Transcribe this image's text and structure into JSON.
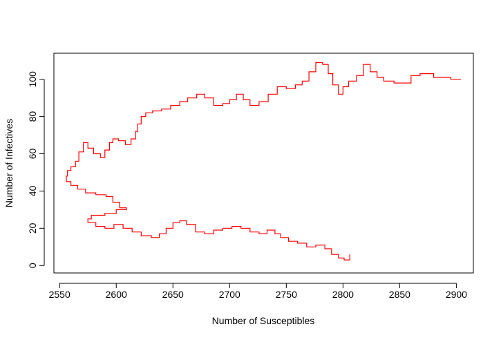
{
  "chart_data": {
    "type": "line",
    "title": "",
    "xlabel": "Number of Susceptibles",
    "ylabel": "Number of Infectives",
    "xlim": [
      2545,
      2915
    ],
    "ylim": [
      -4,
      114
    ],
    "xticks": [
      2550,
      2600,
      2650,
      2700,
      2750,
      2800,
      2850,
      2900
    ],
    "yticks": [
      0,
      20,
      40,
      60,
      80,
      100
    ],
    "grid": false,
    "line_style": "step",
    "series": [
      {
        "color": "#ff0000",
        "points": [
          [
            2904,
            100
          ],
          [
            2895,
            101
          ],
          [
            2880,
            103
          ],
          [
            2868,
            102
          ],
          [
            2860,
            98
          ],
          [
            2845,
            99
          ],
          [
            2836,
            101
          ],
          [
            2830,
            104
          ],
          [
            2824,
            108
          ],
          [
            2818,
            102
          ],
          [
            2812,
            99
          ],
          [
            2805,
            96
          ],
          [
            2800,
            92
          ],
          [
            2796,
            97
          ],
          [
            2791,
            103
          ],
          [
            2787,
            108
          ],
          [
            2782,
            109
          ],
          [
            2776,
            104
          ],
          [
            2770,
            99
          ],
          [
            2764,
            97
          ],
          [
            2758,
            95
          ],
          [
            2750,
            96
          ],
          [
            2742,
            92
          ],
          [
            2734,
            88
          ],
          [
            2726,
            86
          ],
          [
            2718,
            89
          ],
          [
            2712,
            92
          ],
          [
            2706,
            89
          ],
          [
            2700,
            87
          ],
          [
            2694,
            86
          ],
          [
            2686,
            90
          ],
          [
            2678,
            92
          ],
          [
            2671,
            90
          ],
          [
            2663,
            88
          ],
          [
            2656,
            86
          ],
          [
            2648,
            84
          ],
          [
            2640,
            83
          ],
          [
            2632,
            82
          ],
          [
            2626,
            80
          ],
          [
            2622,
            76
          ],
          [
            2619,
            72
          ],
          [
            2617,
            68
          ],
          [
            2613,
            65
          ],
          [
            2608,
            67
          ],
          [
            2602,
            68
          ],
          [
            2597,
            66
          ],
          [
            2594,
            62
          ],
          [
            2590,
            58
          ],
          [
            2586,
            60
          ],
          [
            2580,
            63
          ],
          [
            2575,
            66
          ],
          [
            2571,
            61
          ],
          [
            2567,
            56
          ],
          [
            2564,
            53
          ],
          [
            2560,
            51
          ],
          [
            2557,
            48
          ],
          [
            2556,
            45
          ],
          [
            2560,
            43
          ],
          [
            2566,
            41
          ],
          [
            2573,
            39
          ],
          [
            2582,
            38
          ],
          [
            2591,
            37
          ],
          [
            2597,
            34
          ],
          [
            2603,
            31
          ],
          [
            2609,
            30
          ],
          [
            2600,
            28
          ],
          [
            2590,
            27
          ],
          [
            2578,
            25
          ],
          [
            2575,
            23
          ],
          [
            2582,
            21
          ],
          [
            2590,
            20
          ],
          [
            2598,
            22
          ],
          [
            2606,
            20
          ],
          [
            2614,
            18
          ],
          [
            2622,
            16
          ],
          [
            2631,
            15
          ],
          [
            2638,
            17
          ],
          [
            2644,
            20
          ],
          [
            2650,
            23
          ],
          [
            2656,
            24
          ],
          [
            2662,
            22
          ],
          [
            2670,
            18
          ],
          [
            2678,
            17
          ],
          [
            2686,
            19
          ],
          [
            2694,
            20
          ],
          [
            2702,
            21
          ],
          [
            2710,
            20
          ],
          [
            2718,
            18
          ],
          [
            2726,
            17
          ],
          [
            2733,
            19
          ],
          [
            2740,
            17
          ],
          [
            2745,
            15
          ],
          [
            2752,
            13
          ],
          [
            2760,
            12
          ],
          [
            2768,
            10
          ],
          [
            2776,
            11
          ],
          [
            2784,
            9
          ],
          [
            2790,
            6
          ],
          [
            2796,
            4
          ],
          [
            2801,
            3
          ],
          [
            2806,
            6
          ]
        ]
      }
    ]
  }
}
